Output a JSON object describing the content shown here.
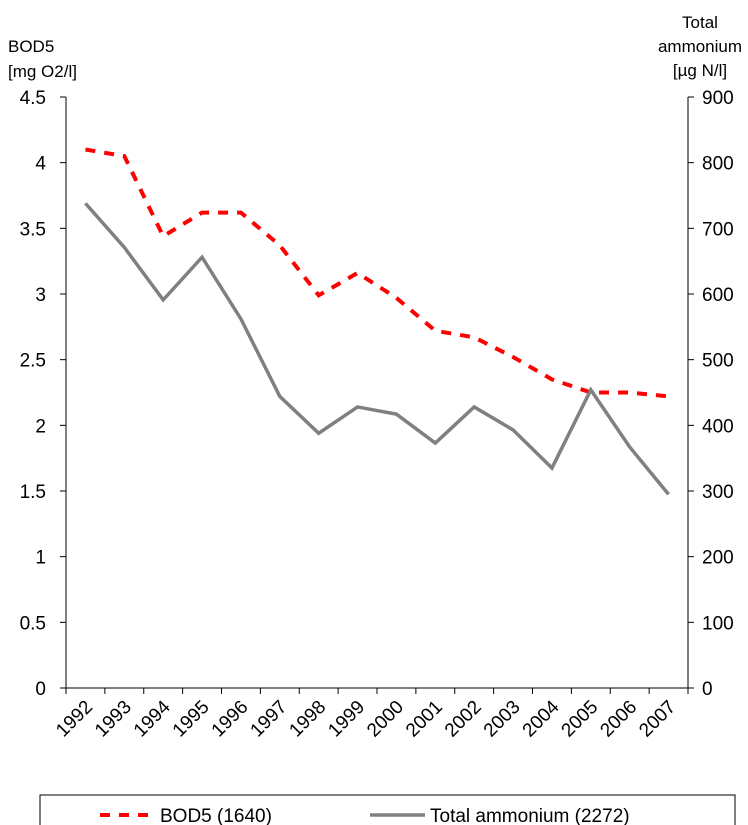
{
  "chart_data": {
    "type": "line",
    "y_label": [
      "BOD5",
      "[mg O2/l]"
    ],
    "y2_label": [
      "Total",
      "ammonium",
      "[µg N/l]"
    ],
    "categories": [
      "1992",
      "1993",
      "1994",
      "1995",
      "1996",
      "1997",
      "1998",
      "1999",
      "2000",
      "2001",
      "2002",
      "2003",
      "2004",
      "2005",
      "2006",
      "2007"
    ],
    "series": [
      {
        "name": "BOD5 (1640)",
        "color": "#ff0000",
        "dashed": true,
        "values": [
          4.1,
          4.05,
          3.44,
          3.62,
          3.62,
          3.37,
          2.99,
          3.16,
          2.97,
          2.72,
          2.67,
          2.52,
          2.35,
          2.25,
          2.25,
          2.22
        ]
      },
      {
        "name": "Total ammonium (2272)",
        "color": "#808080",
        "dashed": false,
        "axis": "y2",
        "values": [
          738,
          671,
          591,
          656,
          562,
          444,
          388,
          428,
          417,
          373,
          428,
          393,
          335,
          454,
          367,
          295
        ]
      }
    ],
    "ylim": [
      0,
      4.5
    ],
    "yticks": [
      0,
      0.5,
      1,
      1.5,
      2,
      2.5,
      3,
      3.5,
      4,
      4.5
    ],
    "y2lim": [
      0,
      900
    ],
    "y2ticks": [
      0,
      100,
      200,
      300,
      400,
      500,
      600,
      700,
      800,
      900
    ],
    "grid": false
  }
}
